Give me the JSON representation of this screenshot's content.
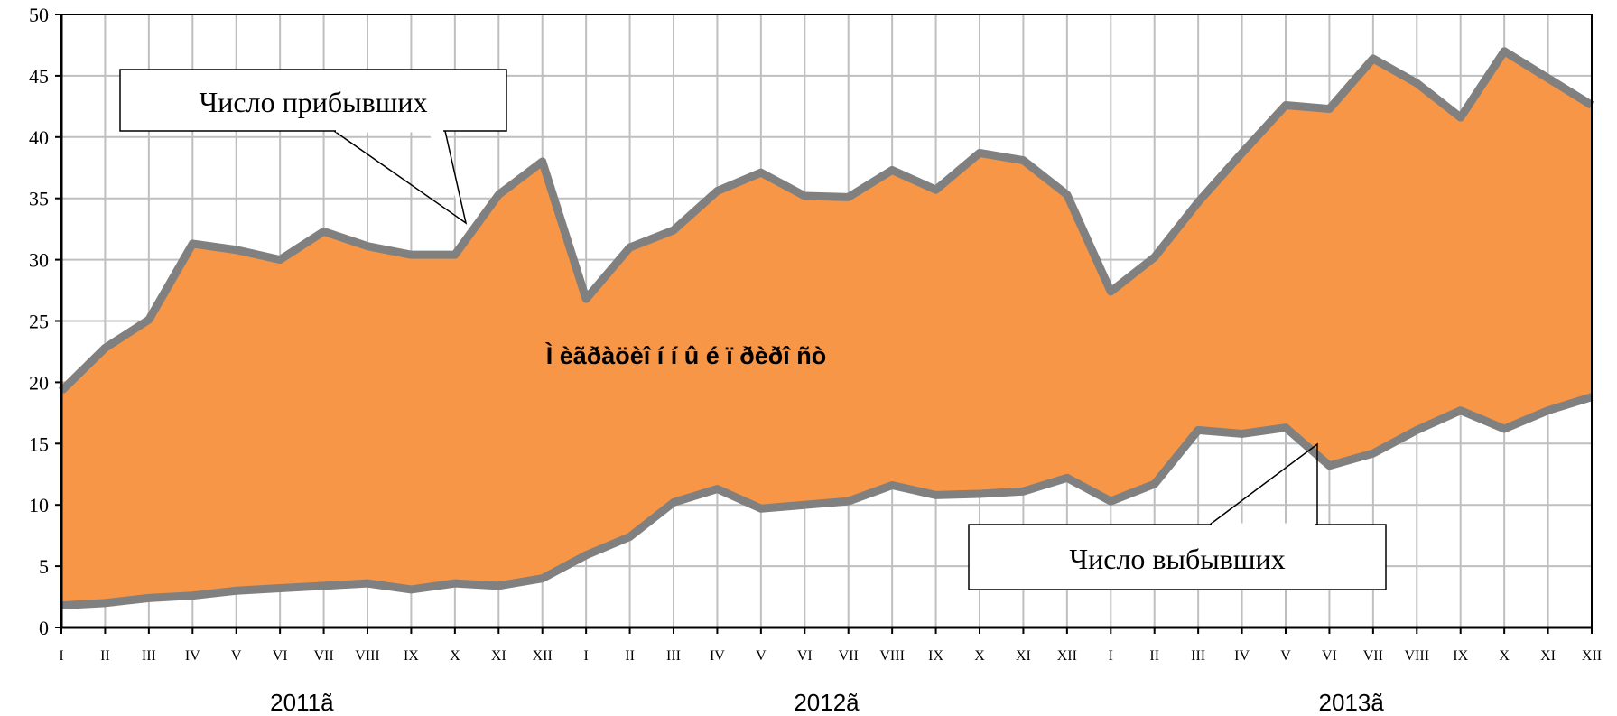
{
  "chart_data": {
    "type": "area",
    "categories": [
      "I",
      "II",
      "III",
      "IV",
      "V",
      "VI",
      "VII",
      "VIII",
      "IX",
      "X",
      "XI",
      "XII",
      "I",
      "II",
      "III",
      "IV",
      "V",
      "VI",
      "VII",
      "VIII",
      "IX",
      "X",
      "XI",
      "XII",
      "I",
      "II",
      "III",
      "IV",
      "V",
      "VI",
      "VII",
      "VIII",
      "IX",
      "X",
      "XI",
      "XII"
    ],
    "years": [
      "2011ã",
      "2012ã",
      "2013ã"
    ],
    "ylim": [
      0,
      50
    ],
    "yticks": [
      0,
      5,
      10,
      15,
      20,
      25,
      30,
      35,
      40,
      45,
      50
    ],
    "grid": true,
    "series": [
      {
        "name": "Число прибывших",
        "values": [
          19.3,
          22.8,
          25.1,
          31.3,
          30.8,
          30.0,
          32.3,
          31.1,
          30.4,
          30.4,
          35.3,
          38.0,
          26.8,
          31.0,
          32.4,
          35.6,
          37.1,
          35.2,
          35.1,
          37.3,
          35.7,
          38.7,
          38.1,
          35.3,
          27.4,
          30.2,
          34.7,
          38.7,
          42.6,
          42.3,
          46.4,
          44.4,
          41.6,
          47.0,
          44.8,
          42.6
        ]
      },
      {
        "name": "Число выбывших",
        "values": [
          1.8,
          2.0,
          2.4,
          2.6,
          3.0,
          3.2,
          3.4,
          3.6,
          3.1,
          3.6,
          3.4,
          4.0,
          5.9,
          7.4,
          10.2,
          11.3,
          9.7,
          10.0,
          10.3,
          11.6,
          10.8,
          10.9,
          11.1,
          12.2,
          10.3,
          11.7,
          16.1,
          15.8,
          16.3,
          13.2,
          14.2,
          16.1,
          17.7,
          16.2,
          17.7,
          18.8
        ]
      }
    ],
    "center_label": "Ì èãðàöèî í í û é ï ðèðî ñò",
    "colors": {
      "fill": "#F79646",
      "line": "#808080",
      "grid": "#BFBFBF",
      "axis": "#000000"
    }
  }
}
